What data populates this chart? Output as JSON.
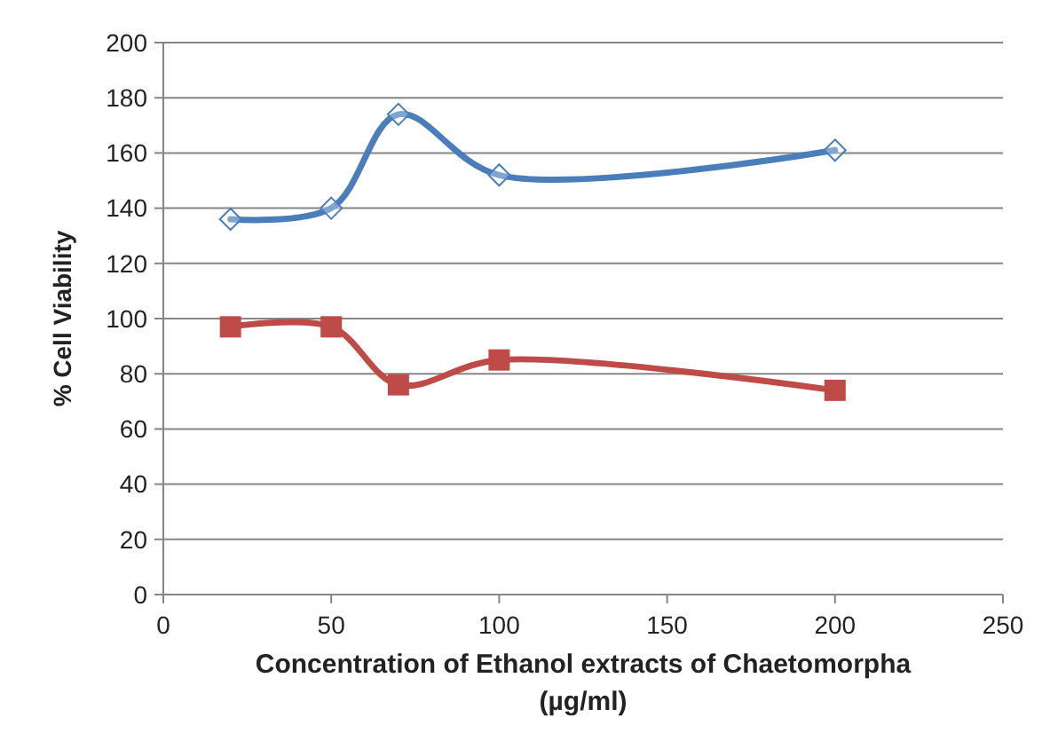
{
  "chart_data": {
    "type": "line",
    "xlabel": "Concentration of Ethanol extracts of Chaetomorpha (µg/ml)",
    "ylabel": "% Cell Viability",
    "x": [
      20,
      50,
      70,
      100,
      200
    ],
    "series": [
      {
        "color": "#4a7ebb",
        "values": [
          136,
          140,
          174,
          152,
          161
        ],
        "marker": "diamond"
      },
      {
        "color": "#be4b48",
        "values": [
          97,
          97,
          76,
          85,
          74
        ],
        "marker": "square"
      }
    ],
    "xlim": [
      0,
      250
    ],
    "xticks": [
      0,
      50,
      100,
      150,
      200,
      250
    ],
    "ylim": [
      0,
      200
    ],
    "yticks": [
      0,
      20,
      40,
      60,
      80,
      100,
      120,
      140,
      160,
      180,
      200
    ],
    "grid": "y",
    "line_style": "solid"
  }
}
